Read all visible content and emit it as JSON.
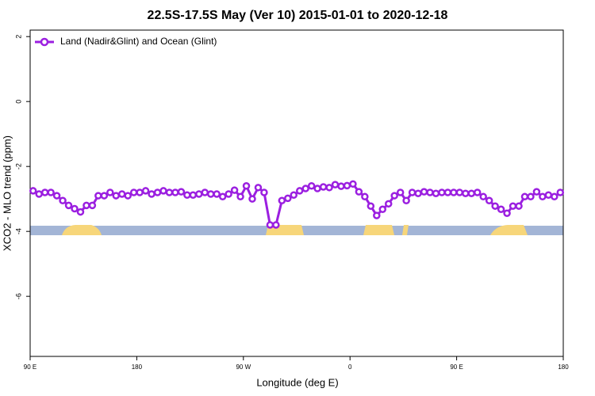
{
  "chart_data": {
    "type": "line",
    "title": "22.5S-17.5S May (Ver 10)   2015-01-01 to 2020-12-18",
    "xlabel": "Longitude (deg E)",
    "ylabel": "XCO2 - MLO trend (ppm)",
    "x": [
      92.5,
      97.5,
      102.5,
      107.5,
      112.5,
      117.5,
      122.5,
      127.5,
      132.5,
      137.5,
      142.5,
      147.5,
      152.5,
      157.5,
      162.5,
      167.5,
      172.5,
      177.5,
      182.5,
      187.5,
      192.5,
      197.5,
      202.5,
      207.5,
      212.5,
      217.5,
      222.5,
      227.5,
      232.5,
      237.5,
      242.5,
      247.5,
      252.5,
      257.5,
      262.5,
      267.5,
      272.5,
      277.5,
      282.5,
      287.5,
      292.5,
      297.5,
      302.5,
      307.5,
      312.5,
      317.5,
      322.5,
      327.5,
      332.5,
      337.5,
      342.5,
      347.5,
      352.5,
      357.5,
      362.5,
      367.5,
      372.5,
      377.5,
      382.5,
      387.5,
      392.5,
      397.5,
      402.5,
      407.5,
      412.5,
      417.5,
      422.5,
      427.5,
      432.5,
      437.5,
      442.5,
      447.5,
      452.5,
      457.5,
      462.5,
      467.5,
      472.5,
      477.5,
      482.5,
      487.5,
      492.5,
      497.5,
      502.5,
      507.5,
      512.5,
      517.5,
      522.5,
      527.5,
      532.5,
      537.5
    ],
    "series": [
      {
        "name": "Land (Nadir&Glint) and Ocean (Glint)",
        "color": "#9b1fe0",
        "values": [
          -2.75,
          -2.85,
          -2.8,
          -2.8,
          -2.9,
          -3.05,
          -3.2,
          -3.3,
          -3.4,
          -3.2,
          -3.2,
          -2.9,
          -2.9,
          -2.8,
          -2.9,
          -2.85,
          -2.9,
          -2.8,
          -2.8,
          -2.75,
          -2.85,
          -2.8,
          -2.75,
          -2.8,
          -2.8,
          -2.78,
          -2.88,
          -2.88,
          -2.85,
          -2.8,
          -2.85,
          -2.85,
          -2.93,
          -2.85,
          -2.73,
          -2.93,
          -2.6,
          -3.0,
          -2.65,
          -2.8,
          -3.8,
          -3.8,
          -3.05,
          -2.98,
          -2.88,
          -2.75,
          -2.68,
          -2.6,
          -2.68,
          -2.63,
          -2.65,
          -2.56,
          -2.61,
          -2.59,
          -2.54,
          -2.78,
          -2.93,
          -3.22,
          -3.51,
          -3.32,
          -3.15,
          -2.9,
          -2.8,
          -3.05,
          -2.8,
          -2.83,
          -2.78,
          -2.8,
          -2.83,
          -2.8,
          -2.8,
          -2.8,
          -2.8,
          -2.83,
          -2.83,
          -2.8,
          -2.93,
          -3.05,
          -3.22,
          -3.32,
          -3.44,
          -3.22,
          -3.22,
          -2.93,
          -2.93,
          -2.78,
          -2.93,
          -2.88,
          -2.93,
          -2.8
        ]
      }
    ],
    "xlim": [
      90,
      540
    ],
    "xticks": [
      {
        "value": 90,
        "label": "90 E"
      },
      180,
      {
        "value": 270,
        "label": "90 W"
      },
      {
        "value": 360,
        "label": "0"
      },
      {
        "value": 450,
        "label": "90 E"
      },
      {
        "value": 540,
        "label": "180"
      }
    ],
    "ylim": [
      -7.85,
      2.2
    ],
    "yticks": [
      2,
      0,
      -2,
      -4,
      -6
    ],
    "legend": "upper left"
  }
}
